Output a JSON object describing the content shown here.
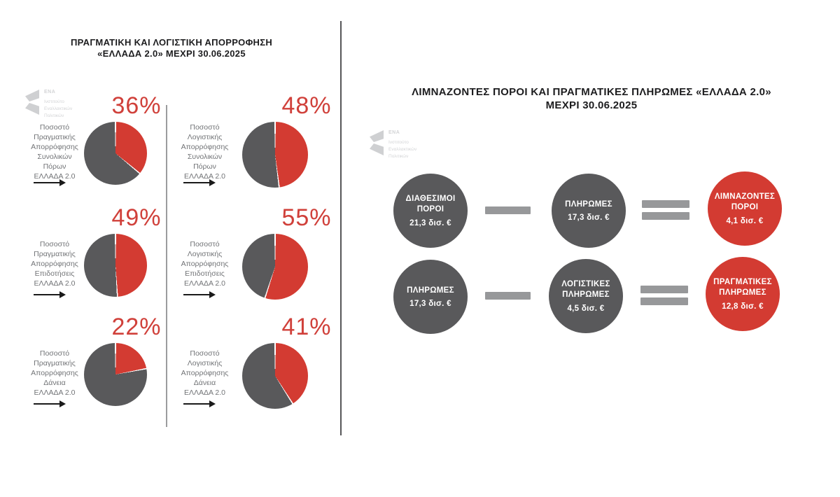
{
  "colors": {
    "red": "#d33b32",
    "dark_gray": "#59595b",
    "percent_red": "#d0403a",
    "operator_gray": "#97989a",
    "label_gray": "#717376",
    "title_black": "#1d1d1f",
    "logo_gray": "#cfd0d2"
  },
  "logo": {
    "brand": "ENA",
    "name_lines": [
      "Ινστιτούτο",
      "Εναλλακτικών",
      "Πολιτικών"
    ]
  },
  "left_panel": {
    "title_lines": [
      "ΠΡΑΓΜΑΤΙΚΗ ΚΑΙ ΛΟΓΙΣΤΙΚΗ ΑΠΟΡΡΟΦΗΣΗ",
      "«ΕΛΛΑΔΑ 2.0» ΜΕΧΡΙ 30.06.2025"
    ],
    "pies": [
      {
        "pct": 36,
        "pct_label": "36%",
        "label_lines": [
          "Ποσοστό",
          "Πραγματικής",
          "Απορρόφησης",
          "Συνολικών",
          "Πόρων",
          "ΕΛΛΑΔΑ 2.0"
        ]
      },
      {
        "pct": 48,
        "pct_label": "48%",
        "label_lines": [
          "Ποσοστό",
          "Λογιστικής",
          "Απορρόφησης",
          "Συνολικών",
          "Πόρων",
          "ΕΛΛΑΔΑ 2.0"
        ]
      },
      {
        "pct": 49,
        "pct_label": "49%",
        "label_lines": [
          "Ποσοστό",
          "Πραγματικής",
          "Απορρόφησης",
          "Επιδοτήσεις",
          "ΕΛΛΑΔΑ 2.0"
        ]
      },
      {
        "pct": 55,
        "pct_label": "55%",
        "label_lines": [
          "Ποσοστό",
          "Λογιστικής",
          "Απορρόφησης",
          "Επιδοτήσεις",
          "ΕΛΛΑΔΑ 2.0"
        ]
      },
      {
        "pct": 22,
        "pct_label": "22%",
        "label_lines": [
          "Ποσοστό",
          "Πραγματικής",
          "Απορρόφησης",
          "Δάνεια",
          "ΕΛΛΑΔΑ 2.0"
        ]
      },
      {
        "pct": 41,
        "pct_label": "41%",
        "label_lines": [
          "Ποσοστό",
          "Λογιστικής",
          "Απορρόφησης",
          "Δάνεια",
          "ΕΛΛΑΔΑ 2.0"
        ]
      }
    ]
  },
  "right_panel": {
    "title_lines": [
      "ΛΙΜΝΑΖΟΝΤΕΣ ΠΟΡΟΙ ΚΑΙ ΠΡΑΓΜΑΤΙΚΕΣ ΠΛΗΡΩΜΕΣ «ΕΛΛΑΔΑ 2.0»",
      "ΜΕΧΡΙ 30.06.2025"
    ],
    "rows": [
      {
        "minuend": {
          "label_lines": [
            "ΔΙΑΘΕΣΙΜΟΙ",
            "ΠΟΡΟΙ"
          ],
          "value": "21,3 δισ. €"
        },
        "subtrahend": {
          "label_lines": [
            "ΠΛΗΡΩΜΕΣ"
          ],
          "value": "17,3 δισ. €"
        },
        "result": {
          "label_lines": [
            "ΛΙΜΝΑΖΟΝΤΕΣ",
            "ΠΟΡΟΙ"
          ],
          "value": "4,1 δισ. €"
        }
      },
      {
        "minuend": {
          "label_lines": [
            "ΠΛΗΡΩΜΕΣ"
          ],
          "value": "17,3 δισ. €"
        },
        "subtrahend": {
          "label_lines": [
            "ΛΟΓΙΣΤΙΚΕΣ",
            "ΠΛΗΡΩΜΕΣ"
          ],
          "value": "4,5 δισ. €"
        },
        "result": {
          "label_lines": [
            "ΠΡΑΓΜΑΤΙΚΕΣ",
            "ΠΛΗΡΩΜΕΣ"
          ],
          "value": "12,8 δισ. €"
        }
      }
    ]
  },
  "chart_data": [
    {
      "type": "pie",
      "title": "ΠΡΑΓΜΑΤΙΚΗ ΚΑΙ ΛΟΓΙΣΤΙΚΗ ΑΠΟΡΡΟΦΗΣΗ «ΕΛΛΑΔΑ 2.0» ΜΕΧΡΙ 30.06.2025",
      "unit": "percent",
      "pies": [
        {
          "label": "Ποσοστό Πραγματικής Απορρόφησης Συνολικών Πόρων ΕΛΛΑΔΑ 2.0",
          "value": 36
        },
        {
          "label": "Ποσοστό Λογιστικής Απορρόφησης Συνολικών Πόρων ΕΛΛΑΔΑ 2.0",
          "value": 48
        },
        {
          "label": "Ποσοστό Πραγματικής Απορρόφησης Επιδοτήσεις ΕΛΛΑΔΑ 2.0",
          "value": 49
        },
        {
          "label": "Ποσοστό Λογιστικής Απορρόφησης Επιδοτήσεις ΕΛΛΑΔΑ 2.0",
          "value": 55
        },
        {
          "label": "Ποσοστό Πραγματικής Απορρόφησης Δάνεια ΕΛΛΑΔΑ 2.0",
          "value": 22
        },
        {
          "label": "Ποσοστό Λογιστικής Απορρόφησης Δάνεια ΕΛΛΑΔΑ 2.0",
          "value": 41
        }
      ],
      "colors": {
        "value_slice": "#d33b32",
        "remainder_slice": "#59595b"
      },
      "slice_start": "12 o'clock, clockwise"
    },
    {
      "type": "diagram",
      "title": "ΛΙΜΝΑΖΟΝΤΕΣ ΠΟΡΟΙ ΚΑΙ ΠΡΑΓΜΑΤΙΚΕΣ ΠΛΗΡΩΜΕΣ «ΕΛΛΑΔΑ 2.0» ΜΕΧΡΙ 30.06.2025",
      "unit": "δισ. €",
      "equations": [
        {
          "minuend": {
            "label": "ΔΙΑΘΕΣΙΜΟΙ ΠΟΡΟΙ",
            "value": 21.3
          },
          "subtrahend": {
            "label": "ΠΛΗΡΩΜΕΣ",
            "value": 17.3
          },
          "result": {
            "label": "ΛΙΜΝΑΖΟΝΤΕΣ ΠΟΡΟΙ",
            "value": 4.1
          }
        },
        {
          "minuend": {
            "label": "ΠΛΗΡΩΜΕΣ",
            "value": 17.3
          },
          "subtrahend": {
            "label": "ΛΟΓΙΣΤΙΚΕΣ ΠΛΗΡΩΜΕΣ",
            "value": 4.5
          },
          "result": {
            "label": "ΠΡΑΓΜΑΤΙΚΕΣ ΠΛΗΡΩΜΕΣ",
            "value": 12.8
          }
        }
      ]
    }
  ]
}
